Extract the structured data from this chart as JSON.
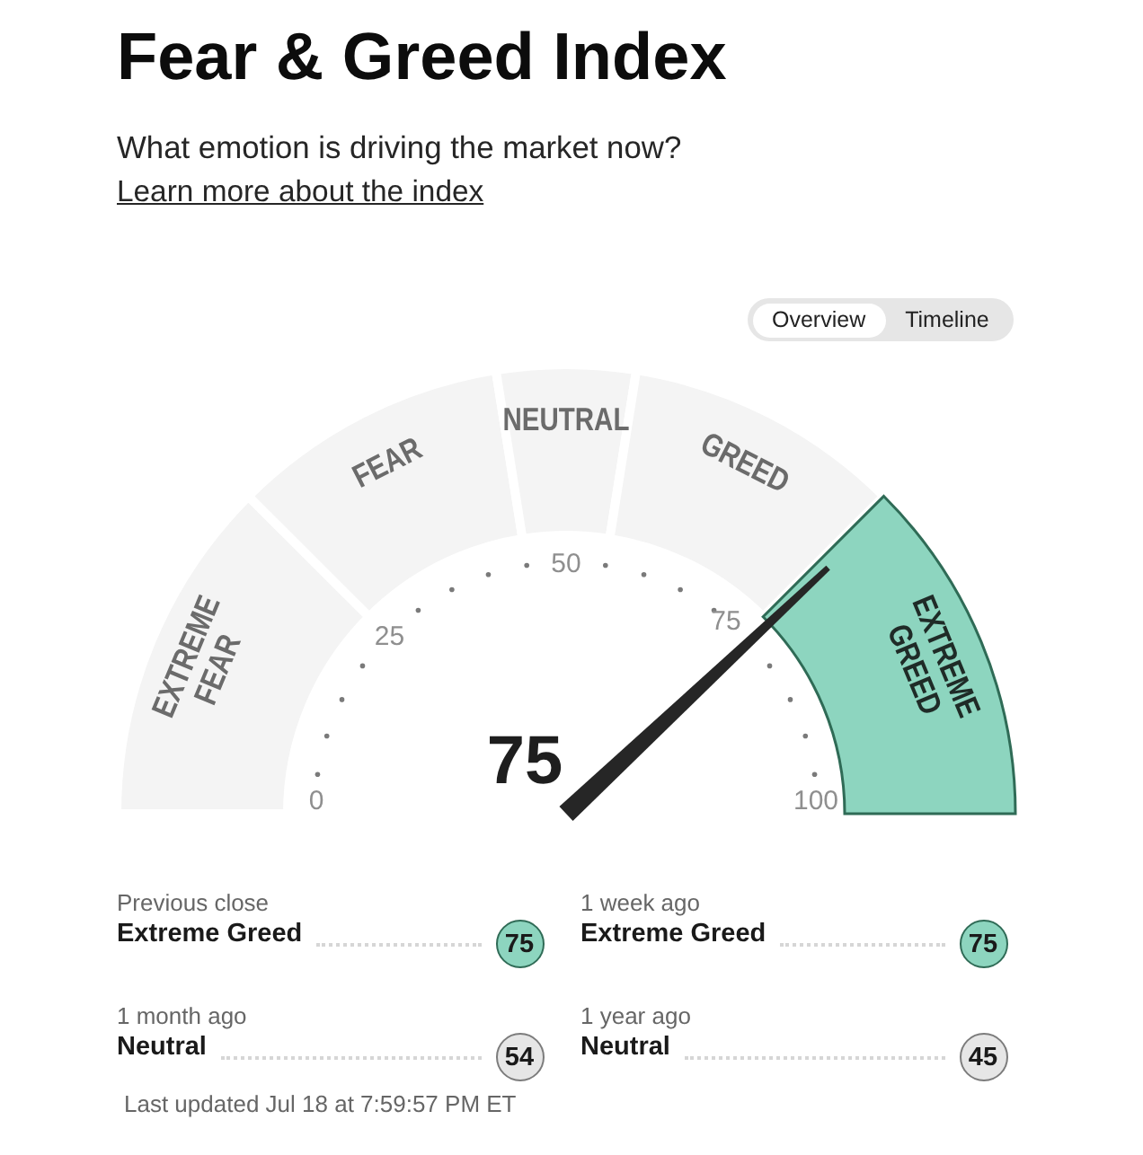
{
  "chart_data": [
    {
      "type": "donut",
      "title": "Fear & Greed Index",
      "subtitle": "What emotion is driving the market now?",
      "annotations": [
        "Learn more about the index",
        "Overview",
        "Timeline",
        "0",
        "25",
        "50",
        "75",
        "100",
        "75"
      ],
      "categories": [
        "EXTREME FEAR",
        "FEAR",
        "NEUTRAL",
        "GREED",
        "EXTREME GREED"
      ],
      "values": [
        25,
        20,
        10,
        20,
        25
      ],
      "colors": [
        "#f4f4f4",
        "#f4f4f4",
        "#f4f4f4",
        "#f4f4f4",
        "#8dd5bf"
      ],
      "needle": "EXTREME GREED"
    },
    {
      "type": "other",
      "colors": [
        "#8dd5bf",
        "#8dd5bf",
        "#e6e6e6",
        "#e6e6e6"
      ],
      "annotations": [
        "Previous close",
        "Extreme Greed",
        "75",
        "1 week ago",
        "Extreme Greed",
        "75",
        "1 month ago",
        "Neutral",
        "54",
        "1 year ago",
        "Neutral",
        "45",
        "Last updated Jul 18 at 7:59:57 PM ET"
      ]
    }
  ]
}
